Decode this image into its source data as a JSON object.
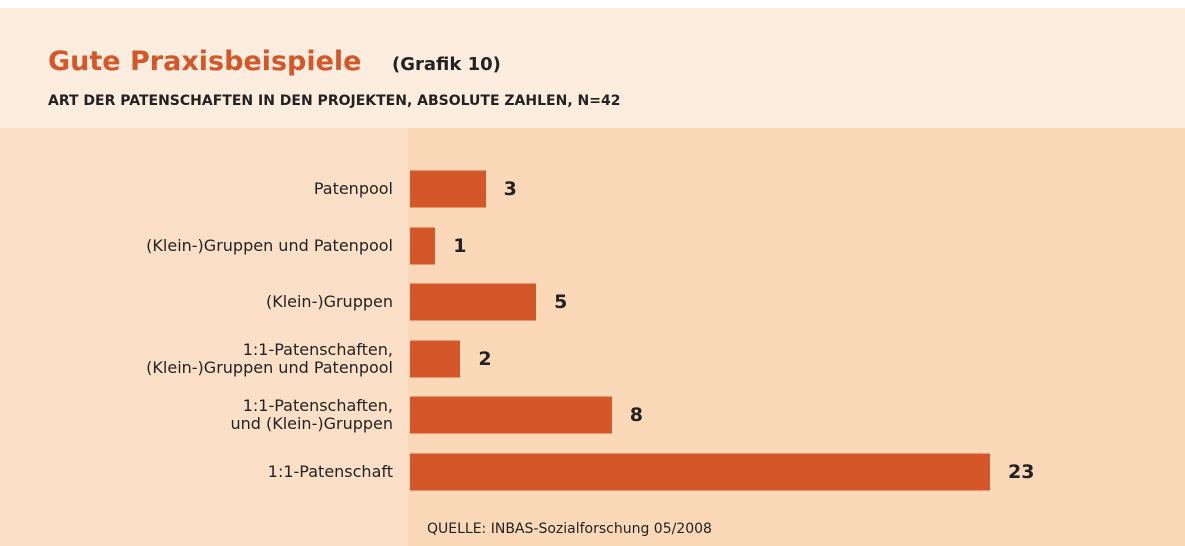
{
  "chart_data": {
    "type": "bar",
    "orientation": "horizontal",
    "title": "Gute Praxisbeispiele",
    "title_tag": "(Grafik 10)",
    "subtitle": "ART DER PATENSCHAFTEN IN DEN PROJEKTEN, ABSOLUTE ZAHLEN, N=42",
    "categories": [
      "Patenpool",
      "(Klein-)Gruppen und Patenpool",
      "(Klein-)Gruppen",
      "1:1-Patenschaften,\n(Klein-)Gruppen und Patenpool",
      "1:1-Patenschaften,\nund (Klein-)Gruppen",
      "1:1-Patenschaft"
    ],
    "values": [
      3,
      1,
      5,
      2,
      8,
      23
    ],
    "color": "#d4572a",
    "source": "QUELLE: INBAS-Sozialforschung 05/2008"
  }
}
